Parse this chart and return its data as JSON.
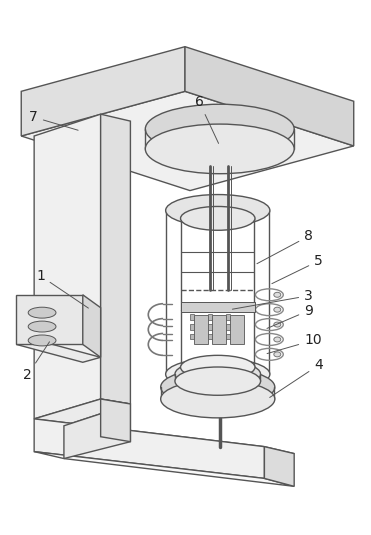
{
  "background_color": "#ffffff",
  "line_color": "#555555",
  "line_width": 1.0,
  "label_fontsize": 10,
  "figsize": [
    3.71,
    5.35
  ],
  "dpi": 100
}
